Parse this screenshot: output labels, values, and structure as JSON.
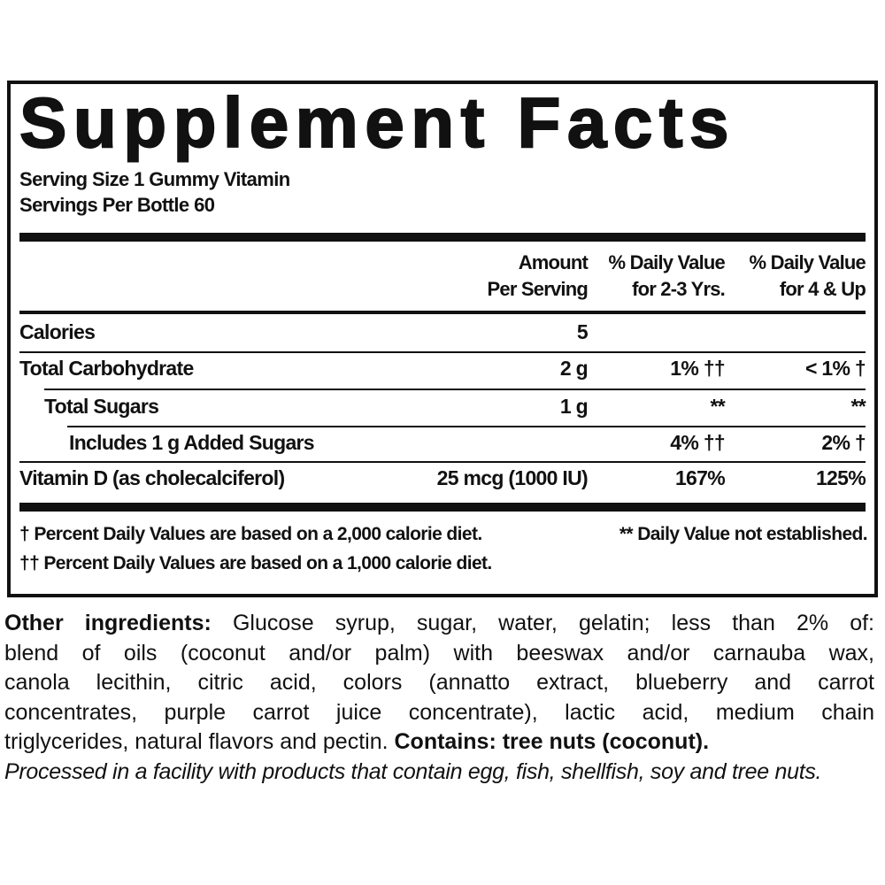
{
  "title": "Supplement Facts",
  "serving_size": "Serving Size 1 Gummy Vitamin",
  "servings_per": "Servings Per Bottle 60",
  "headers": {
    "amount": [
      "Amount",
      "Per Serving"
    ],
    "dv_2_3": [
      "% Daily Value",
      "for 2-3 Yrs."
    ],
    "dv_4_up": [
      "% Daily Value",
      "for 4 & Up"
    ]
  },
  "rows": [
    {
      "label": "Calories",
      "amount": "5",
      "dv_2_3": "",
      "dv_4_up": ""
    },
    {
      "label": "Total Carbohydrate",
      "amount": "2 g",
      "dv_2_3": "1% ††",
      "dv_4_up": "< 1% †"
    },
    {
      "label": "Total Sugars",
      "amount": "1 g",
      "dv_2_3": "**",
      "dv_4_up": "**"
    },
    {
      "label": "Includes 1 g Added Sugars",
      "amount": "",
      "dv_2_3": "4% ††",
      "dv_4_up": "2% †"
    },
    {
      "label": "Vitamin D (as cholecalciferol)",
      "amount": "25 mcg (1000 IU)",
      "dv_2_3": "167%",
      "dv_4_up": "125%"
    }
  ],
  "footnotes": {
    "dagger": "† Percent Daily Values are based on a 2,000 calorie diet.",
    "double_dagger": "†† Percent Daily Values are based on a 1,000 calorie diet.",
    "not_established": "** Daily Value not established."
  },
  "ingredients": {
    "label": "Other ingredients:",
    "line1": " Glucose syrup, sugar, water, gelatin; less than 2% of:",
    "line2": "blend of oils (coconut and/or palm) with beeswax and/or carnauba wax,",
    "line3": "canola lecithin, citric acid, colors (annatto extract, blueberry and carrot",
    "line4": "concentrates, purple carrot juice concentrate), lactic acid, medium chain",
    "line5": "triglycerides, natural flavors and pectin. ",
    "contains": "Contains: tree nuts (coconut).",
    "facility": "Processed in a facility with products that contain egg, fish, shellfish, soy and tree nuts."
  }
}
